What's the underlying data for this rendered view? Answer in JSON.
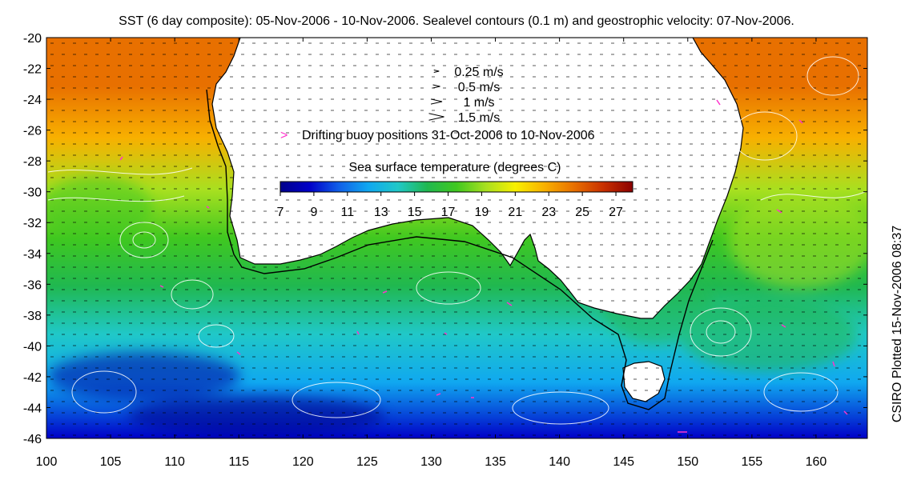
{
  "title": "SST (6 day composite): 05-Nov-2006 - 10-Nov-2006. Sealevel contours (0.1 m) and geostrophic velocity: 07-Nov-2006.",
  "side_label": "CSIRO Plotted 15-Nov-2006 08:37",
  "axes": {
    "x_range": [
      100,
      164
    ],
    "y_range": [
      -46,
      -20
    ],
    "x_ticks": [
      "100",
      "105",
      "110",
      "115",
      "120",
      "125",
      "130",
      "135",
      "140",
      "145",
      "150",
      "155",
      "160"
    ],
    "y_ticks": [
      "-20",
      "-22",
      "-24",
      "-26",
      "-28",
      "-30",
      "-32",
      "-34",
      "-36",
      "-38",
      "-40",
      "-42",
      "-44",
      "-46"
    ]
  },
  "legend": {
    "velocity_scale": [
      {
        "label": "0.25 m/s",
        "speed": 0.25
      },
      {
        "label": "0.5 m/s",
        "speed": 0.5
      },
      {
        "label": "1 m/s",
        "speed": 1
      },
      {
        "label": "1.5 m/s",
        "speed": 1.5
      }
    ],
    "buoy_label": "Drifting buoy positions 31-Oct-2006 to 10-Nov-2006",
    "buoy_color": "#ff33cc",
    "colorbar_title": "Sea surface temperature (degrees C)",
    "colorbar_range": [
      7,
      28
    ],
    "colorbar_ticks": [
      "7",
      "9",
      "11",
      "13",
      "15",
      "17",
      "19",
      "21",
      "23",
      "25",
      "27"
    ],
    "colormap": [
      "#00008b",
      "#0000c8",
      "#1060e8",
      "#10a8f0",
      "#20c8c8",
      "#20b850",
      "#40c820",
      "#a8e020",
      "#f8f000",
      "#f8b000",
      "#e87000",
      "#c83000",
      "#8b0000"
    ]
  },
  "colors": {
    "land": "#ffffff",
    "coastline": "#000000",
    "contours": "#ffffff",
    "bathymetry": "#000000"
  },
  "chart_data": {
    "type": "heatmap",
    "title": "SST (6 day composite): 05-Nov-2006 - 10-Nov-2006. Sealevel contours (0.1 m) and geostrophic velocity: 07-Nov-2006.",
    "xlabel": "",
    "ylabel": "",
    "xlim": [
      100,
      164
    ],
    "ylim": [
      -46,
      -20
    ],
    "value_range": [
      7,
      28
    ],
    "grid": false,
    "legend_position": "top-center"
  }
}
